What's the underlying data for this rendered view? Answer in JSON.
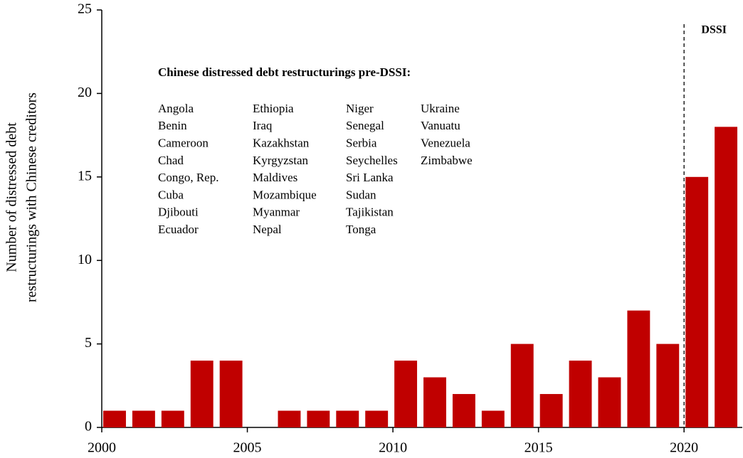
{
  "chart_data": {
    "type": "bar",
    "ylabel": [
      "Number of distressed debt",
      "restructurings with Chinese creditors"
    ],
    "x": [
      2000,
      2001,
      2002,
      2003,
      2004,
      2005,
      2006,
      2007,
      2008,
      2009,
      2010,
      2011,
      2012,
      2013,
      2014,
      2015,
      2016,
      2017,
      2018,
      2019,
      2020,
      2021
    ],
    "values": [
      1,
      1,
      1,
      4,
      4,
      0,
      1,
      1,
      1,
      1,
      4,
      3,
      2,
      1,
      5,
      2,
      4,
      3,
      7,
      5,
      15,
      18
    ],
    "color": "#c00000",
    "xlim": [
      2000,
      2022
    ],
    "xticks": [
      2000,
      2005,
      2010,
      2015,
      2020
    ],
    "ylim": [
      0,
      25
    ],
    "yticks": [
      0,
      5,
      10,
      15,
      20,
      25
    ],
    "grid": false,
    "vline": {
      "x": 2020,
      "label": "DSSI"
    },
    "annotation": {
      "title": "Chinese distressed debt restructurings pre-DSSI:",
      "columns": [
        [
          "Angola",
          "Benin",
          "Cameroon",
          "Chad",
          "Congo, Rep.",
          "Cuba",
          "Djibouti",
          "Ecuador"
        ],
        [
          "Ethiopia",
          "Iraq",
          "Kazakhstan",
          "Kyrgyzstan",
          "Maldives",
          "Mozambique",
          "Myanmar",
          "Nepal"
        ],
        [
          "Niger",
          "Senegal",
          "Serbia",
          "Seychelles",
          "Sri Lanka",
          "Sudan",
          "Tajikistan",
          "Tonga"
        ],
        [
          "Ukraine",
          "Vanuatu",
          "Venezuela",
          "Zimbabwe"
        ]
      ]
    }
  }
}
